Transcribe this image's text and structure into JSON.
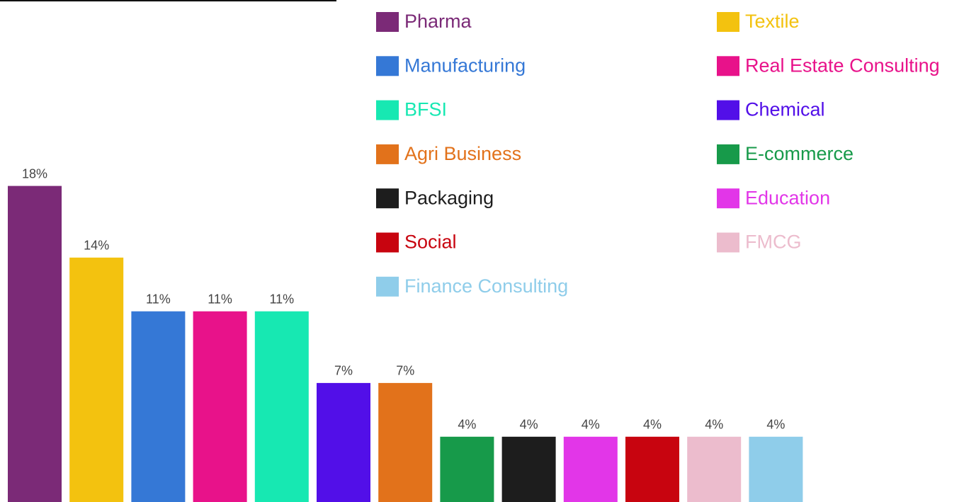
{
  "chart_data": {
    "type": "bar",
    "series": [
      {
        "name": "Pharma",
        "color": "#7b2a77",
        "values": [
          18
        ],
        "value_labels": [
          "18%"
        ]
      },
      {
        "name": "Textile",
        "color": "#f3c20f",
        "values": [
          14
        ],
        "value_labels": [
          "14%"
        ]
      },
      {
        "name": "Manufacturing",
        "color": "#3578d6",
        "values": [
          11
        ],
        "value_labels": [
          "11%"
        ]
      },
      {
        "name": "Real Estate Consulting",
        "color": "#e8128a",
        "values": [
          11
        ],
        "value_labels": [
          "11%"
        ]
      },
      {
        "name": "BFSI",
        "color": "#17e8b2",
        "values": [
          11
        ],
        "value_labels": [
          "11%"
        ]
      },
      {
        "name": "Chemical",
        "color": "#520fe8",
        "values": [
          7
        ],
        "value_labels": [
          "7%"
        ]
      },
      {
        "name": "Agri Business",
        "color": "#e2721b",
        "values": [
          7
        ],
        "value_labels": [
          "7%"
        ]
      },
      {
        "name": "E-commerce",
        "color": "#179a4a",
        "values": [
          4
        ],
        "value_labels": [
          "4%"
        ]
      },
      {
        "name": "Packaging",
        "color": "#1d1d1d",
        "values": [
          4
        ],
        "value_labels": [
          "4%"
        ]
      },
      {
        "name": "Education",
        "color": "#e236e8",
        "values": [
          4
        ],
        "value_labels": [
          "4%"
        ]
      },
      {
        "name": "Social",
        "color": "#c8040f",
        "values": [
          4
        ],
        "value_labels": [
          "4%"
        ]
      },
      {
        "name": "FMCG",
        "color": "#ecbccd",
        "values": [
          4
        ],
        "value_labels": [
          "4%"
        ]
      },
      {
        "name": "Finance Consulting",
        "color": "#8fcdea",
        "values": [
          4
        ],
        "value_labels": [
          "4%"
        ]
      }
    ]
  }
}
